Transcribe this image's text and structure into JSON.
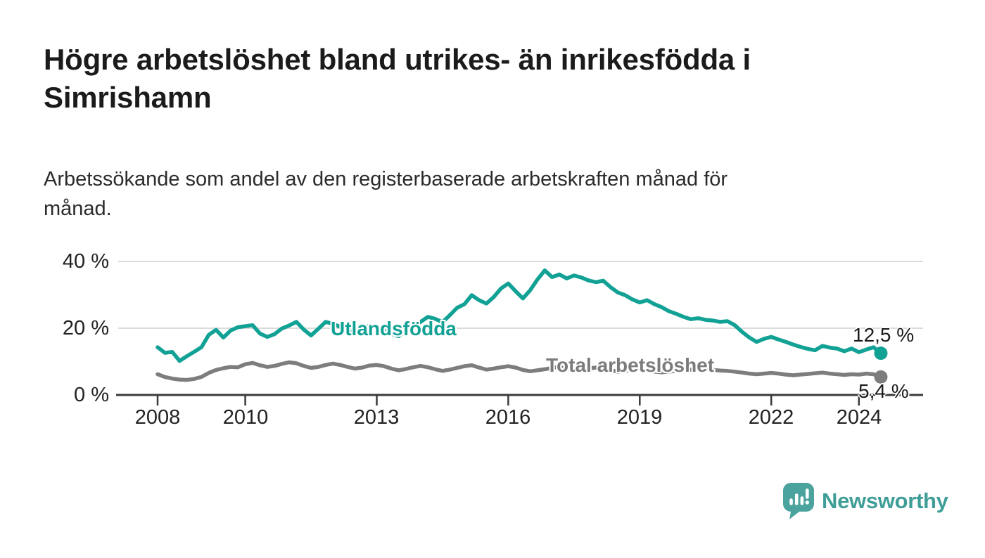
{
  "header": {
    "title_line1": "Högre arbetslöshet bland utrikes- än inrikesfödda i",
    "title_line2": "Simrishamn",
    "subtitle_line1": "Arbetssökande som andel av den registerbaserade arbetskraften månad för",
    "subtitle_line2": "månad."
  },
  "chart_data": {
    "type": "line",
    "title": "Högre arbetslöshet bland utrikes- än inrikesfödda i Simrishamn",
    "subtitle": "Arbetssökande som andel av den registerbaserade arbetskraften månad för månad.",
    "xlabel": "",
    "ylabel": "",
    "xlim": [
      2007.1,
      2025.4
    ],
    "ylim": [
      0,
      42
    ],
    "grid": "horizontal-light",
    "legend": "inline-labels",
    "x_start": 2008.0,
    "x_step_years": 0.166667,
    "x_ticks": [
      {
        "year": 2008,
        "label": "2008"
      },
      {
        "year": 2010,
        "label": "2010"
      },
      {
        "year": 2013,
        "label": "2013"
      },
      {
        "year": 2016,
        "label": "2016"
      },
      {
        "year": 2019,
        "label": "2019"
      },
      {
        "year": 2022,
        "label": "2022"
      },
      {
        "year": 2024,
        "label": "2024"
      }
    ],
    "y_ticks": [
      {
        "value": 40,
        "label": "40 %"
      },
      {
        "value": 20,
        "label": "20 %"
      },
      {
        "value": 0,
        "label": "0 %"
      }
    ],
    "series": [
      {
        "name": "Utlandsfödda",
        "color": "#12a195",
        "end_label": "12,5 %",
        "end_value": 12.5,
        "values": [
          14.3,
          12.6,
          12.9,
          10.2,
          11.6,
          12.9,
          14.3,
          18.0,
          19.5,
          17.2,
          19.3,
          20.3,
          20.6,
          20.9,
          18.4,
          17.4,
          18.2,
          19.9,
          20.8,
          21.9,
          19.6,
          17.8,
          19.8,
          21.9,
          21.3,
          20.4,
          19.2,
          18.7,
          19.9,
          20.8,
          20.5,
          19.7,
          18.3,
          17.6,
          19.1,
          20.7,
          21.9,
          23.4,
          22.8,
          21.8,
          23.9,
          26.1,
          27.2,
          29.9,
          28.4,
          27.4,
          29.3,
          31.9,
          33.4,
          31.1,
          28.9,
          31.4,
          34.6,
          37.3,
          35.3,
          36.1,
          34.9,
          35.8,
          35.2,
          34.3,
          33.8,
          34.2,
          32.3,
          30.7,
          29.9,
          28.6,
          27.7,
          28.4,
          27.2,
          26.3,
          25.1,
          24.3,
          23.4,
          22.7,
          23.0,
          22.5,
          22.3,
          21.9,
          22.1,
          20.9,
          18.9,
          17.2,
          15.9,
          16.8,
          17.4,
          16.6,
          15.9,
          15.1,
          14.4,
          13.8,
          13.4,
          14.7,
          14.2,
          13.9,
          13.1,
          13.9,
          12.8,
          13.6,
          14.3,
          12.5
        ]
      },
      {
        "name": "Total arbetslöshet",
        "color": "#7d7d7d",
        "end_label": "5,4 %",
        "end_value": 5.4,
        "values": [
          6.2,
          5.4,
          4.9,
          4.6,
          4.5,
          4.8,
          5.4,
          6.6,
          7.5,
          8.0,
          8.4,
          8.3,
          9.2,
          9.6,
          8.9,
          8.4,
          8.7,
          9.3,
          9.8,
          9.5,
          8.7,
          8.1,
          8.4,
          9.0,
          9.4,
          9.0,
          8.4,
          7.9,
          8.2,
          8.8,
          9.0,
          8.6,
          7.9,
          7.4,
          7.8,
          8.3,
          8.7,
          8.3,
          7.7,
          7.2,
          7.6,
          8.1,
          8.6,
          8.9,
          8.2,
          7.6,
          7.9,
          8.3,
          8.6,
          8.2,
          7.5,
          7.1,
          7.4,
          7.7,
          8.1,
          8.4,
          7.8,
          7.3,
          7.6,
          7.9,
          8.2,
          7.9,
          7.4,
          7.0,
          7.2,
          7.5,
          7.7,
          7.4,
          7.0,
          6.8,
          7.0,
          7.2,
          7.3,
          7.6,
          8.0,
          7.8,
          7.5,
          7.3,
          7.2,
          7.0,
          6.7,
          6.4,
          6.2,
          6.4,
          6.6,
          6.4,
          6.1,
          5.9,
          6.1,
          6.3,
          6.5,
          6.7,
          6.4,
          6.2,
          6.0,
          6.2,
          6.1,
          6.4,
          6.2,
          5.4
        ]
      }
    ],
    "colors": {
      "axis": "#3a3a3a",
      "gridline": "#dbdbdb",
      "tick_text": "#222222",
      "annotation_text": "#1a1a1a"
    }
  },
  "footer": {
    "brand": "Newsworthy",
    "logo_icon": "speech-bubble-bar-chart-icon",
    "brand_color": "#3f9e97"
  }
}
